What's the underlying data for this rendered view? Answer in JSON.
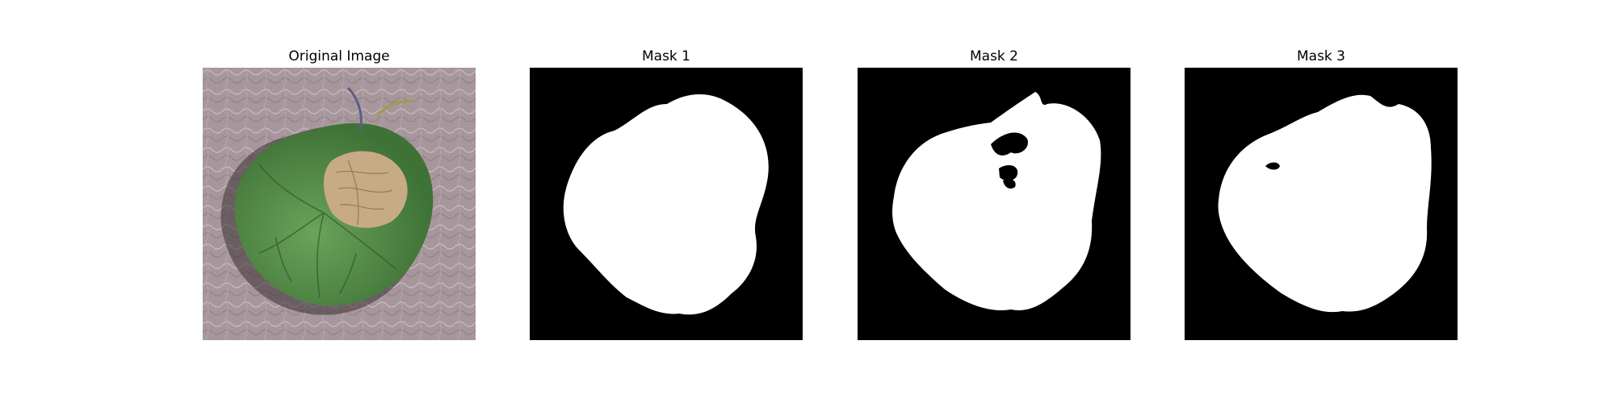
{
  "panels": [
    {
      "title": "Original Image",
      "kind": "photo",
      "subject": "leaf"
    },
    {
      "title": "Mask 1",
      "kind": "mask"
    },
    {
      "title": "Mask 2",
      "kind": "mask"
    },
    {
      "title": "Mask 3",
      "kind": "mask"
    }
  ],
  "colors": {
    "background": "#ffffff",
    "mask_bg": "#000000",
    "mask_fg": "#ffffff",
    "leaf_green": "#4f8a45",
    "leaf_brown": "#c8ad86",
    "surface": "#a9989e"
  }
}
